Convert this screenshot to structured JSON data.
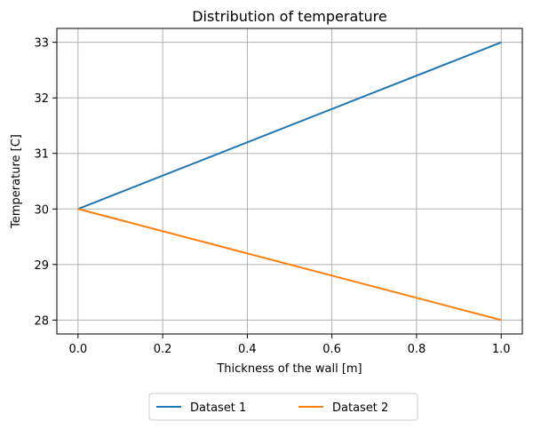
{
  "chart_data": {
    "type": "line",
    "title": "Distribution of temperature",
    "xlabel": "Thickness of the wall [m]",
    "ylabel": "Temperature [C]",
    "xlim": [
      -0.05,
      1.05
    ],
    "ylim": [
      27.75,
      33.25
    ],
    "xticks": [
      0.0,
      0.2,
      0.4,
      0.6,
      0.8,
      1.0
    ],
    "xtick_labels": [
      "0.0",
      "0.2",
      "0.4",
      "0.6",
      "0.8",
      "1.0"
    ],
    "yticks": [
      28,
      29,
      30,
      31,
      32,
      33
    ],
    "ytick_labels": [
      "28",
      "29",
      "30",
      "31",
      "32",
      "33"
    ],
    "grid": true,
    "legend_position": "bottom-center",
    "series": [
      {
        "name": "Dataset 1",
        "color": "#1f77b4",
        "x": [
          0.0,
          1.0
        ],
        "y": [
          30,
          33
        ]
      },
      {
        "name": "Dataset 2",
        "color": "#ff7f0e",
        "x": [
          0.0,
          1.0
        ],
        "y": [
          30,
          28
        ]
      }
    ]
  }
}
